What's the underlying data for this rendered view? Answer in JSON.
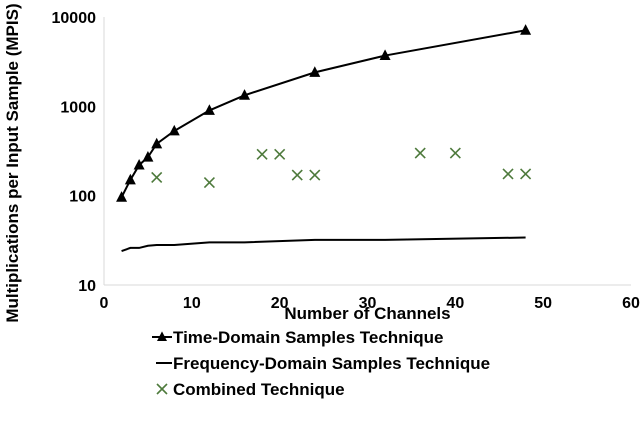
{
  "chart_data": {
    "type": "scatter",
    "title": "",
    "xlabel": "Number of Channels",
    "ylabel": "Multiplications per Input Sample  (MPIS)",
    "xlim": [
      0,
      60
    ],
    "ylim": [
      10,
      10000
    ],
    "yscale": "log",
    "x_ticks": [
      "0",
      "10",
      "20",
      "30",
      "40",
      "50",
      "60"
    ],
    "y_ticks": [
      "10",
      "100",
      "1000",
      "10000"
    ],
    "grid": "none",
    "legend_position": "bottom",
    "series": [
      {
        "name": "Time-Domain Samples Technique",
        "style": "line-triangle-marker",
        "color": "#000000",
        "x": [
          2,
          3,
          4,
          5,
          6,
          8,
          12,
          16,
          24,
          32,
          48
        ],
        "y": [
          96,
          150,
          220,
          270,
          380,
          530,
          900,
          1330,
          2400,
          3700,
          7100
        ]
      },
      {
        "name": "Frequency-Domain Samples Technique",
        "style": "line",
        "color": "#000000",
        "x": [
          2,
          3,
          4,
          5,
          6,
          8,
          12,
          16,
          24,
          32,
          48
        ],
        "y": [
          24,
          26,
          26,
          27.5,
          28,
          28,
          30,
          30,
          32,
          32,
          34
        ]
      },
      {
        "name": "Combined Technique",
        "style": "x-marker",
        "color": "#4e7a3c",
        "x": [
          6,
          12,
          18,
          20,
          22,
          24,
          36,
          40,
          46,
          48
        ],
        "y": [
          160,
          140,
          290,
          290,
          170,
          170,
          300,
          300,
          175,
          175
        ]
      }
    ]
  }
}
